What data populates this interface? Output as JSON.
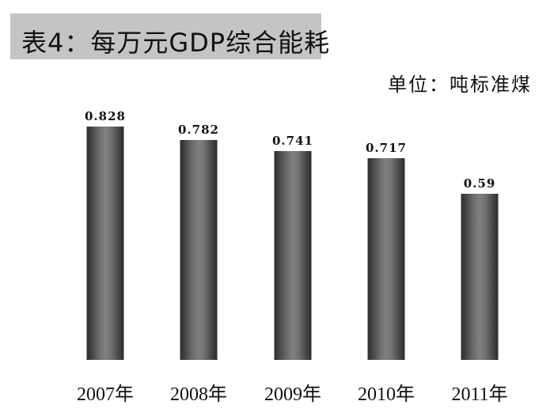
{
  "title": "表4：每万元GDP综合能耗",
  "unit_label": "单位：吨标准煤",
  "chart_data": {
    "type": "bar",
    "title": "表4：每万元GDP综合能耗",
    "subtitle": "单位：吨标准煤",
    "categories": [
      "2007年",
      "2008年",
      "2009年",
      "2010年",
      "2011年"
    ],
    "values": [
      0.828,
      0.782,
      0.741,
      0.717,
      0.59
    ],
    "value_labels": [
      "0.828",
      "0.782",
      "0.741",
      "0.717",
      "0.59"
    ],
    "xlabel": "",
    "ylabel": "吨标准煤",
    "ylim": [
      0,
      0.83
    ],
    "grid": false,
    "legend": "none",
    "bar_color": "#5a5a5a"
  },
  "colors": {
    "title_background": "#c4c4c4",
    "text": "#111111",
    "background": "#ffffff"
  }
}
